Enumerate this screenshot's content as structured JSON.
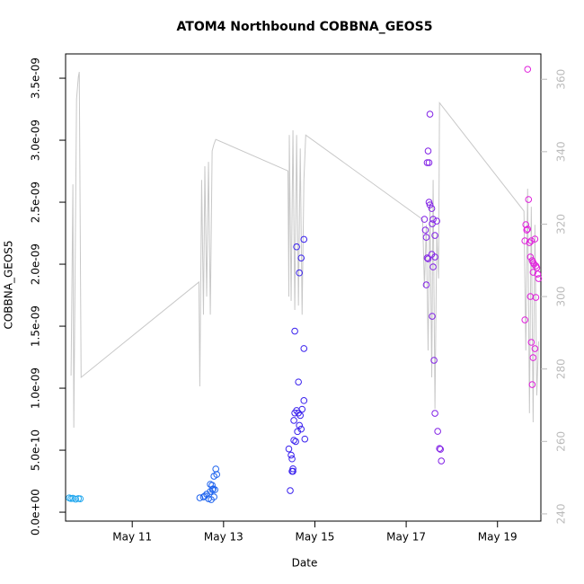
{
  "chart_data": {
    "type": "scatter",
    "title": "ATOM4 Northbound COBBNA_GEOS5",
    "x_label": "Date",
    "y_label": "COBBNA_GEOS5",
    "xlim": [
      9.54,
      19.95
    ],
    "xticks": [
      {
        "value": 11,
        "label": "May 11"
      },
      {
        "value": 13,
        "label": "May 13"
      },
      {
        "value": 15,
        "label": "May 15"
      },
      {
        "value": 17,
        "label": "May 17"
      },
      {
        "value": 19,
        "label": "May 19"
      }
    ],
    "ylim": [
      -7.2e-11,
      3.696e-09
    ],
    "yticks": [
      {
        "value": 0,
        "label": "0.0e+00"
      },
      {
        "value": 5e-10,
        "label": "5.0e-10"
      },
      {
        "value": 1e-09,
        "label": "1.0e-09"
      },
      {
        "value": 1.5e-09,
        "label": "1.5e-09"
      },
      {
        "value": 2e-09,
        "label": "2.0e-09"
      },
      {
        "value": 2.5e-09,
        "label": "2.5e-09"
      },
      {
        "value": 3e-09,
        "label": "3.0e-09"
      },
      {
        "value": 3.5e-09,
        "label": "3.5e-09"
      }
    ],
    "y2lim": [
      238,
      367
    ],
    "y2ticks": [
      240,
      260,
      280,
      300,
      320,
      340,
      360
    ],
    "y2_color": "#bbbbbb",
    "series": [
      {
        "type": "scatter",
        "color": "#1ea6ee",
        "x": [
          9.62,
          9.66,
          9.7,
          9.76,
          9.82,
          9.86
        ],
        "values": [
          1.15e-10,
          1.1e-10,
          1.12e-10,
          1.05e-10,
          1.1e-10,
          1.08e-10
        ]
      },
      {
        "type": "scatter",
        "color": "#1c62ee",
        "x": [
          12.48,
          12.56,
          12.63,
          12.71,
          12.75,
          12.79,
          12.76,
          12.83,
          12.85,
          12.67,
          12.59,
          12.79,
          12.77,
          12.71,
          12.73,
          12.81
        ],
        "values": [
          1.16e-10,
          1.23e-10,
          1.45e-10,
          1.67e-10,
          2.17e-10,
          2.9e-10,
          1.81e-10,
          3.48e-10,
          3.04e-10,
          1.09e-10,
          1.3e-10,
          1.23e-10,
          1.88e-10,
          2.25e-10,
          1.01e-10,
          1.81e-10
        ]
      },
      {
        "type": "scatter",
        "color": "#3a22ee",
        "x": [
          14.46,
          14.5,
          14.52,
          14.54,
          14.48,
          14.5,
          14.43,
          14.58,
          14.54,
          14.56,
          14.6,
          14.64,
          14.68,
          14.66,
          14.7,
          14.62,
          14.72,
          14.76,
          14.78,
          14.64,
          14.76,
          14.56,
          14.6,
          14.66,
          14.7,
          14.76,
          14.52
        ],
        "values": [
          1.74e-10,
          3.3e-10,
          3.5e-10,
          5.8e-10,
          4.6e-10,
          4.3e-10,
          5.1e-10,
          5.7e-10,
          7.4e-10,
          8e-10,
          8.2e-10,
          8e-10,
          7.8e-10,
          7e-10,
          6.7e-10,
          6.5e-10,
          8.3e-10,
          9e-10,
          5.9e-10,
          1.05e-09,
          1.32e-09,
          1.46e-09,
          2.14e-09,
          1.93e-09,
          2.05e-09,
          2.2e-09,
          3.3e-10
        ]
      },
      {
        "type": "scatter",
        "color": "#8222e6",
        "x": [
          17.4,
          17.42,
          17.44,
          17.46,
          17.48,
          17.44,
          17.48,
          17.5,
          17.52,
          17.5,
          17.52,
          17.56,
          17.57,
          17.59,
          17.63,
          17.59,
          17.56,
          17.63,
          17.57,
          17.61,
          17.63,
          17.69,
          17.73,
          17.75,
          17.77,
          17.67,
          17.46
        ],
        "values": [
          2.362e-09,
          2.275e-09,
          2.217e-09,
          2.051e-09,
          2.043e-09,
          1.833e-09,
          2.913e-09,
          2.819e-09,
          3.21e-09,
          2.5e-09,
          2.478e-09,
          2.449e-09,
          2.326e-09,
          2.362e-09,
          2.232e-09,
          1.978e-09,
          2.08e-09,
          2.058e-09,
          1.58e-09,
          1.225e-09,
          7.97e-10,
          6.52e-10,
          5.14e-10,
          5.07e-10,
          4.13e-10,
          2.348e-09,
          2.819e-09
        ]
      },
      {
        "type": "scatter",
        "color": "#e020dc",
        "x": [
          19.66,
          19.68,
          19.62,
          19.64,
          19.6,
          19.66,
          19.72,
          19.76,
          19.8,
          19.84,
          19.74,
          19.82,
          19.78,
          19.86,
          19.88,
          19.9,
          19.72,
          19.84,
          19.6,
          19.74,
          19.82,
          19.78,
          19.76,
          19.7,
          19.78
        ],
        "values": [
          3.572e-09,
          2.522e-09,
          2.319e-09,
          2.275e-09,
          2.188e-09,
          2.283e-09,
          2.058e-09,
          2.029e-09,
          2e-09,
          1.986e-09,
          2.188e-09,
          2.203e-09,
          1.935e-09,
          1.971e-09,
          1.92e-09,
          1.884e-09,
          1.739e-09,
          1.732e-09,
          1.551e-09,
          1.37e-09,
          1.319e-09,
          1.246e-09,
          1.029e-09,
          2.174e-09,
          2.014e-09
        ]
      },
      {
        "type": "line",
        "axis": "y2",
        "color": "#c8c8c8",
        "x": [
          9.66,
          9.7,
          9.72,
          9.78,
          9.82,
          9.84,
          9.88,
          12.46,
          12.48,
          12.52,
          12.56,
          12.59,
          12.63,
          12.67,
          12.71,
          12.75,
          12.79,
          12.83,
          14.41,
          14.43,
          14.44,
          14.48,
          14.52,
          14.56,
          14.6,
          14.64,
          14.68,
          14.72,
          14.76,
          14.8,
          17.36,
          17.4,
          17.44,
          17.48,
          17.52,
          17.56,
          17.59,
          17.63,
          17.67,
          17.71,
          17.73,
          19.58,
          19.62,
          19.66,
          19.7,
          19.74,
          19.78,
          19.82,
          19.86,
          19.9
        ],
        "values": [
          278.2,
          331.0,
          263.8,
          354.5,
          360.7,
          362.0,
          277.7,
          304.0,
          275.2,
          332.2,
          295.0,
          336.0,
          300.0,
          337.2,
          295.0,
          340.2,
          342.1,
          343.4,
          334.7,
          300.0,
          344.6,
          298.8,
          345.9,
          296.3,
          344.6,
          297.5,
          340.9,
          295.0,
          332.2,
          344.6,
          321.3,
          302.5,
          319.8,
          285.1,
          326.0,
          277.7,
          332.2,
          269.0,
          317.4,
          305.0,
          353.5,
          323.6,
          285.1,
          329.8,
          267.8,
          324.8,
          265.3,
          319.8,
          272.7,
          287.6
        ]
      }
    ]
  }
}
